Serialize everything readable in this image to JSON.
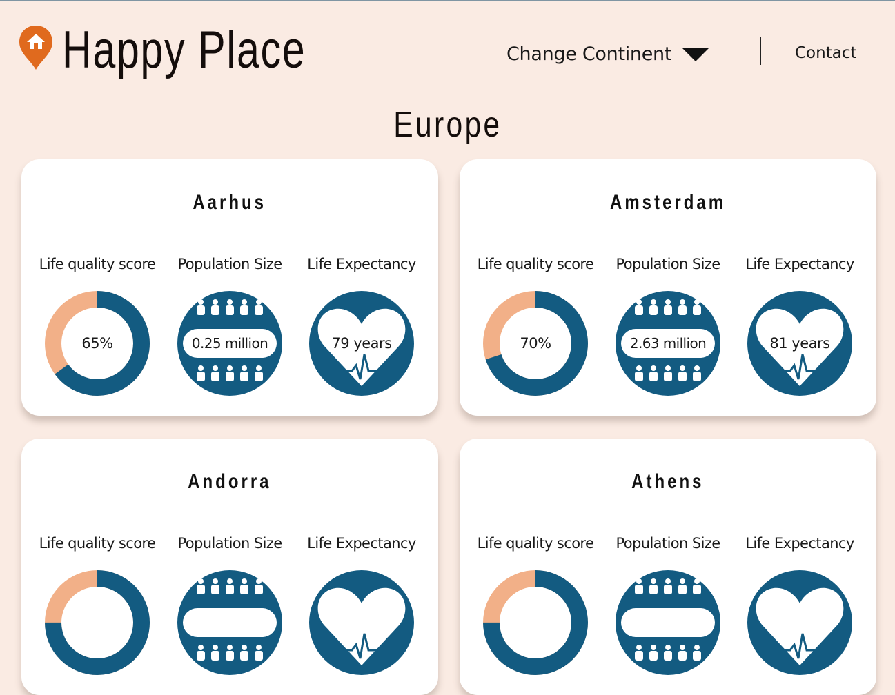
{
  "brand": {
    "title": "Happy Place"
  },
  "nav": {
    "change_continent": "Change Continent",
    "contact": "Contact"
  },
  "continent": {
    "title": "Europe"
  },
  "colors": {
    "accent": "#135b81",
    "quality_light": "#f2b088",
    "pin": "#e06a1e",
    "background": "#faebe3"
  },
  "metric_labels": {
    "quality": "Life quality score",
    "population": "Population Size",
    "life": "Life Expectancy"
  },
  "cities": [
    {
      "name": "Aarhus",
      "quality_pct": 65,
      "quality_text": "65%",
      "population_text": "0.25 million",
      "life_text": "79 years"
    },
    {
      "name": "Amsterdam",
      "quality_pct": 70,
      "quality_text": "70%",
      "population_text": "2.63 million",
      "life_text": "81 years"
    },
    {
      "name": "Andorra",
      "quality_pct": 75,
      "quality_text": "",
      "population_text": "",
      "life_text": ""
    },
    {
      "name": "Athens",
      "quality_pct": 75,
      "quality_text": "",
      "population_text": "",
      "life_text": ""
    }
  ]
}
